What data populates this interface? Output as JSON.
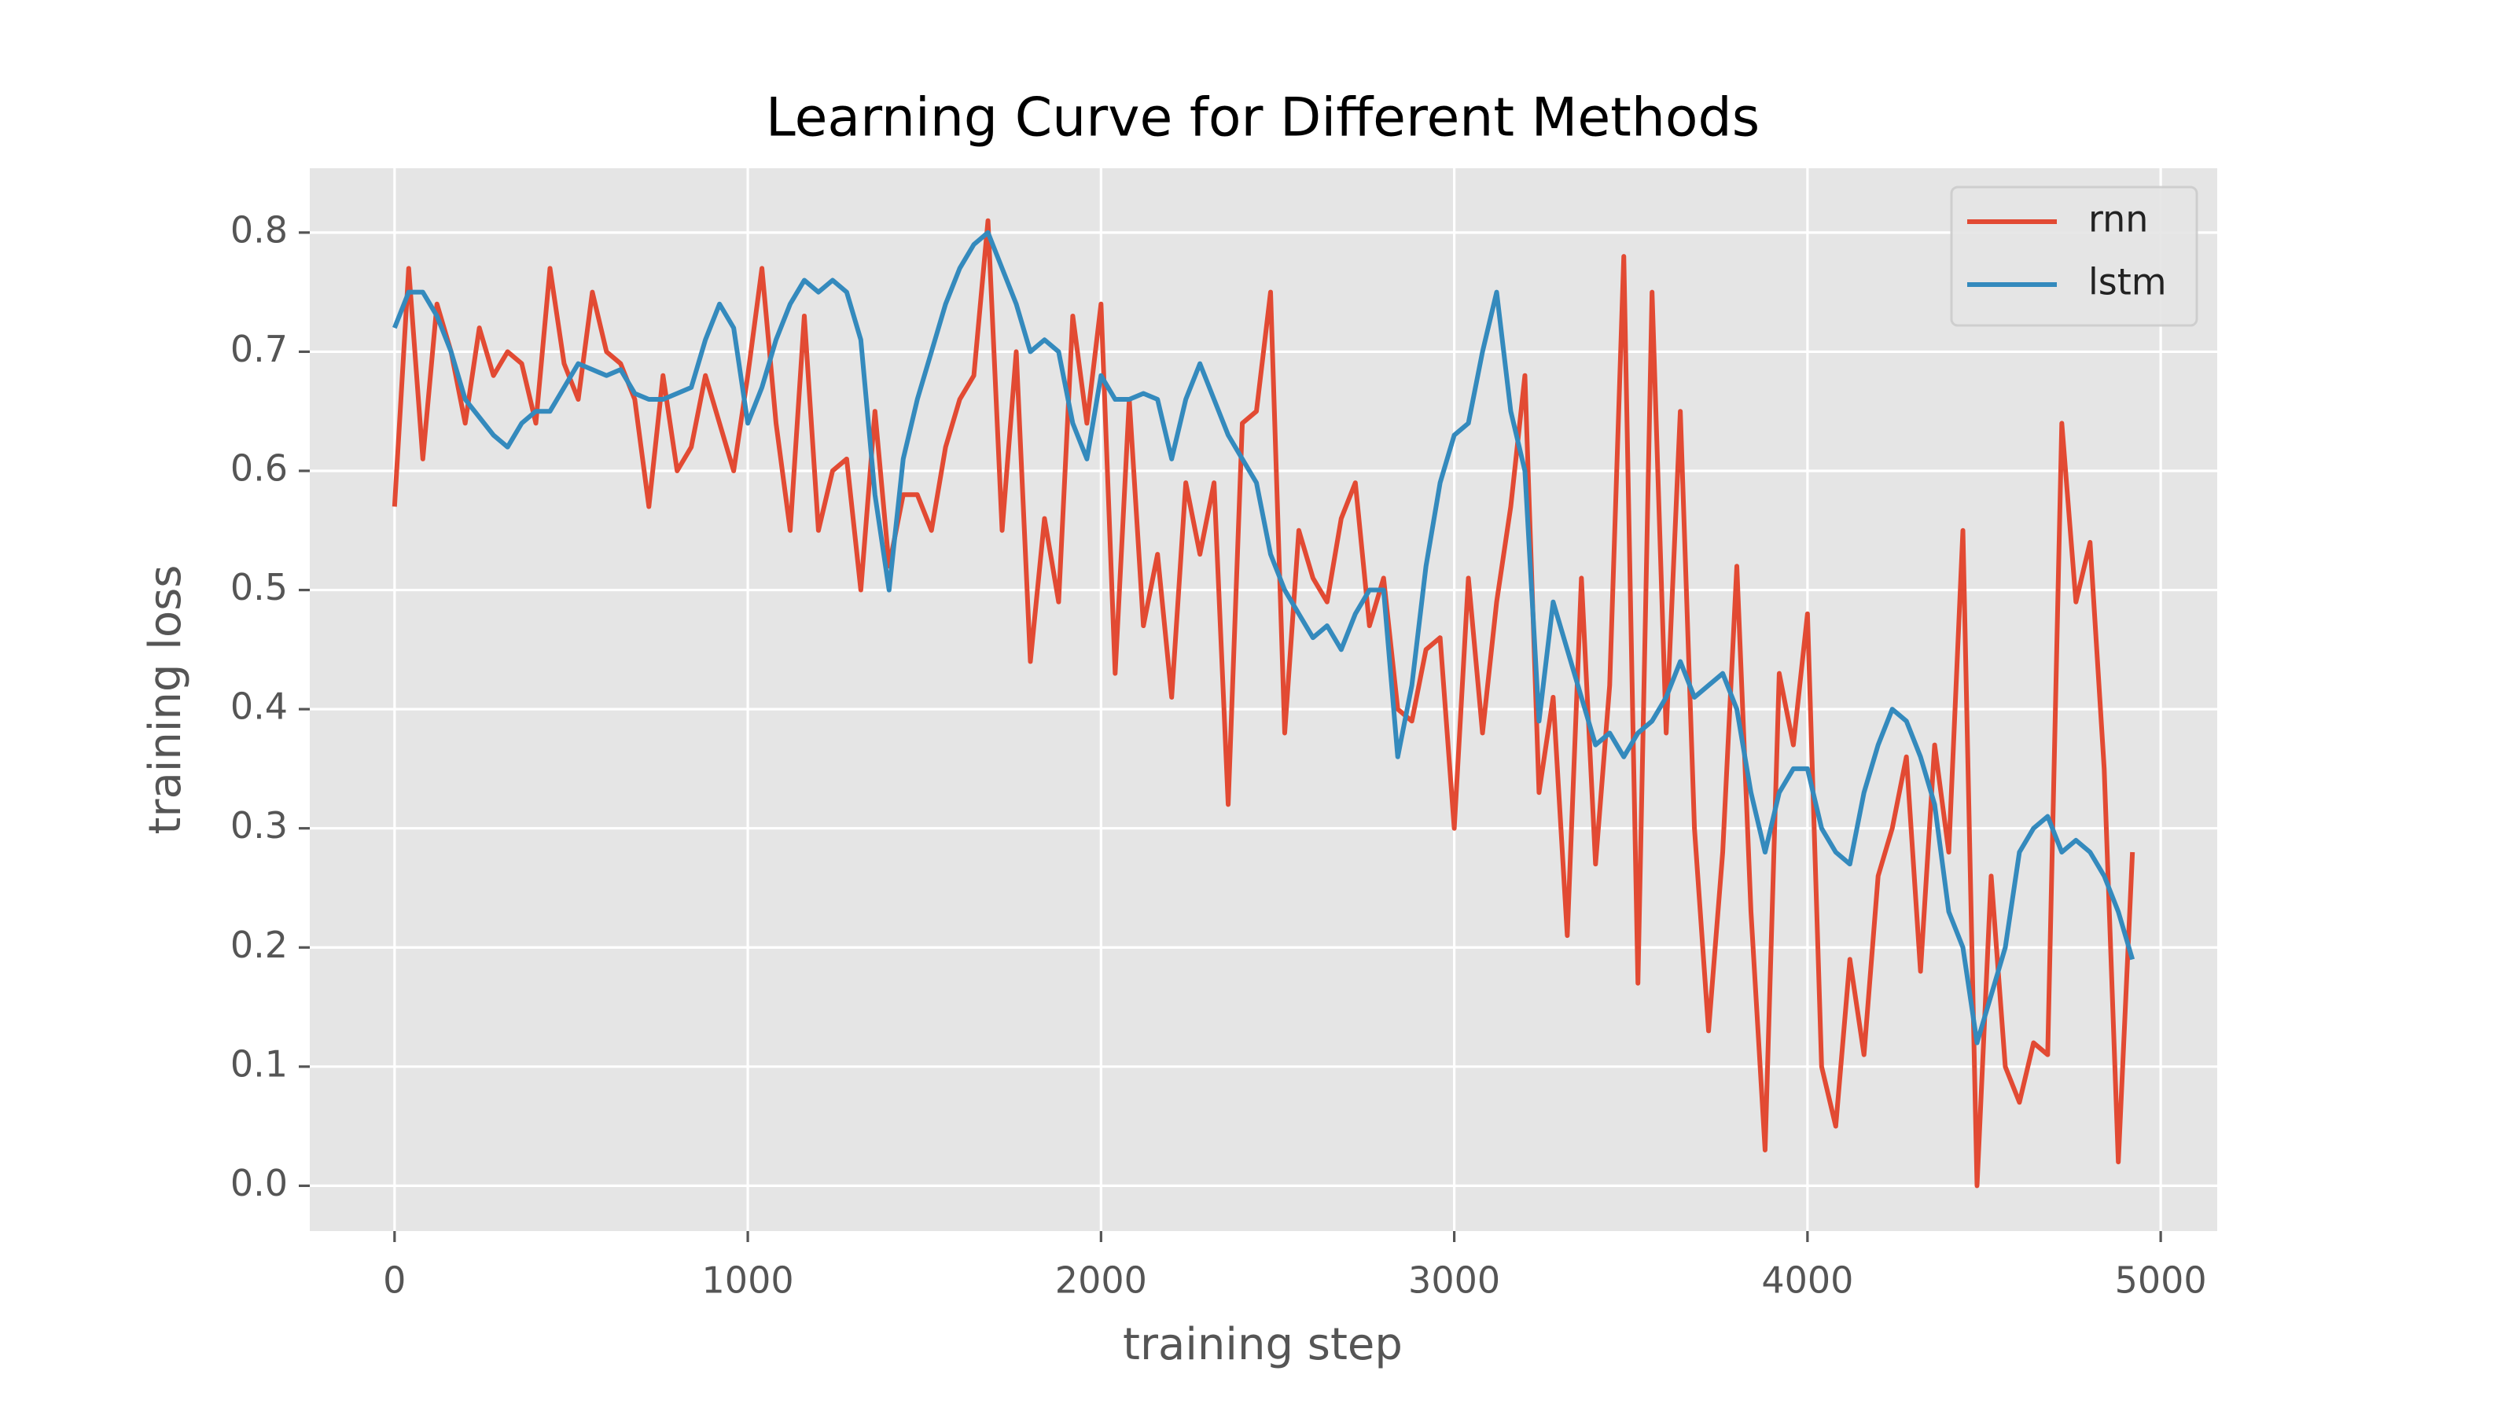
{
  "chart_data": {
    "type": "line",
    "title": "Learning Curve for Different Methods",
    "x_label": "training step",
    "y_label": "training loss",
    "x": [
      0,
      40,
      80,
      120,
      160,
      200,
      240,
      280,
      320,
      360,
      400,
      440,
      480,
      520,
      560,
      600,
      640,
      680,
      720,
      760,
      800,
      840,
      880,
      920,
      960,
      1000,
      1040,
      1080,
      1120,
      1160,
      1200,
      1240,
      1280,
      1320,
      1360,
      1400,
      1440,
      1480,
      1520,
      1560,
      1600,
      1640,
      1680,
      1720,
      1760,
      1800,
      1840,
      1880,
      1920,
      1960,
      2000,
      2040,
      2080,
      2120,
      2160,
      2200,
      2240,
      2280,
      2320,
      2360,
      2400,
      2440,
      2480,
      2520,
      2560,
      2600,
      2640,
      2680,
      2720,
      2760,
      2800,
      2840,
      2880,
      2920,
      2960,
      3000,
      3040,
      3080,
      3120,
      3160,
      3200,
      3240,
      3280,
      3320,
      3360,
      3400,
      3440,
      3480,
      3520,
      3560,
      3600,
      3640,
      3680,
      3720,
      3760,
      3800,
      3840,
      3880,
      3920,
      3960,
      4000,
      4040,
      4080,
      4120,
      4160,
      4200,
      4240,
      4280,
      4320,
      4360,
      4400,
      4440,
      4480,
      4520,
      4560,
      4600,
      4640,
      4680,
      4720,
      4760,
      4800,
      4840,
      4880,
      4920
    ],
    "series": [
      {
        "name": "rnn",
        "color": "#e24a33",
        "values": [
          0.57,
          0.77,
          0.61,
          0.74,
          0.7,
          0.64,
          0.72,
          0.68,
          0.7,
          0.69,
          0.64,
          0.77,
          0.69,
          0.66,
          0.75,
          0.7,
          0.69,
          0.66,
          0.57,
          0.68,
          0.6,
          0.62,
          0.68,
          0.64,
          0.6,
          0.68,
          0.77,
          0.64,
          0.55,
          0.73,
          0.55,
          0.6,
          0.61,
          0.5,
          0.65,
          0.52,
          0.58,
          0.58,
          0.55,
          0.62,
          0.66,
          0.68,
          0.81,
          0.55,
          0.7,
          0.44,
          0.56,
          0.49,
          0.73,
          0.64,
          0.74,
          0.43,
          0.66,
          0.47,
          0.53,
          0.41,
          0.59,
          0.53,
          0.59,
          0.32,
          0.64,
          0.65,
          0.75,
          0.38,
          0.55,
          0.51,
          0.49,
          0.56,
          0.59,
          0.47,
          0.51,
          0.4,
          0.39,
          0.45,
          0.46,
          0.3,
          0.51,
          0.38,
          0.49,
          0.57,
          0.68,
          0.33,
          0.41,
          0.21,
          0.51,
          0.27,
          0.42,
          0.78,
          0.17,
          0.75,
          0.38,
          0.65,
          0.3,
          0.13,
          0.28,
          0.52,
          0.23,
          0.03,
          0.43,
          0.37,
          0.48,
          0.1,
          0.05,
          0.19,
          0.11,
          0.26,
          0.3,
          0.36,
          0.18,
          0.37,
          0.28,
          0.55,
          0.0,
          0.26,
          0.1,
          0.07,
          0.12,
          0.11,
          0.64,
          0.49,
          0.54,
          0.35,
          0.02,
          0.28
        ]
      },
      {
        "name": "lstm",
        "color": "#348abd",
        "values": [
          0.72,
          0.75,
          0.75,
          0.73,
          0.7,
          0.66,
          0.645,
          0.63,
          0.62,
          0.64,
          0.65,
          0.65,
          0.67,
          0.69,
          0.685,
          0.68,
          0.685,
          0.665,
          0.66,
          0.66,
          0.665,
          0.67,
          0.71,
          0.74,
          0.72,
          0.64,
          0.67,
          0.71,
          0.74,
          0.76,
          0.75,
          0.76,
          0.75,
          0.71,
          0.58,
          0.5,
          0.61,
          0.66,
          0.7,
          0.74,
          0.77,
          0.79,
          0.8,
          0.77,
          0.74,
          0.7,
          0.71,
          0.7,
          0.64,
          0.61,
          0.68,
          0.66,
          0.66,
          0.665,
          0.66,
          0.61,
          0.66,
          0.69,
          0.66,
          0.63,
          0.61,
          0.59,
          0.53,
          0.5,
          0.48,
          0.46,
          0.47,
          0.45,
          0.48,
          0.5,
          0.5,
          0.36,
          0.42,
          0.52,
          0.59,
          0.63,
          0.64,
          0.7,
          0.75,
          0.65,
          0.6,
          0.39,
          0.49,
          0.45,
          0.41,
          0.37,
          0.38,
          0.36,
          0.38,
          0.39,
          0.41,
          0.44,
          0.41,
          0.42,
          0.43,
          0.4,
          0.33,
          0.28,
          0.33,
          0.35,
          0.35,
          0.3,
          0.28,
          0.27,
          0.33,
          0.37,
          0.4,
          0.39,
          0.36,
          0.32,
          0.23,
          0.2,
          0.12,
          0.16,
          0.2,
          0.28,
          0.3,
          0.31,
          0.28,
          0.29,
          0.28,
          0.26,
          0.23,
          0.19
        ]
      }
    ],
    "xlim": [
      -240,
      5160
    ],
    "xticks": [
      0,
      1000,
      2000,
      3000,
      4000,
      5000
    ],
    "ylim": [
      -0.038,
      0.854
    ],
    "yticks": [
      {
        "value": 0,
        "label": "0.0"
      },
      0.1,
      0.2,
      0.3,
      0.4,
      0.5,
      0.6,
      0.7,
      0.8
    ],
    "grid": true,
    "legend": "upper right"
  }
}
